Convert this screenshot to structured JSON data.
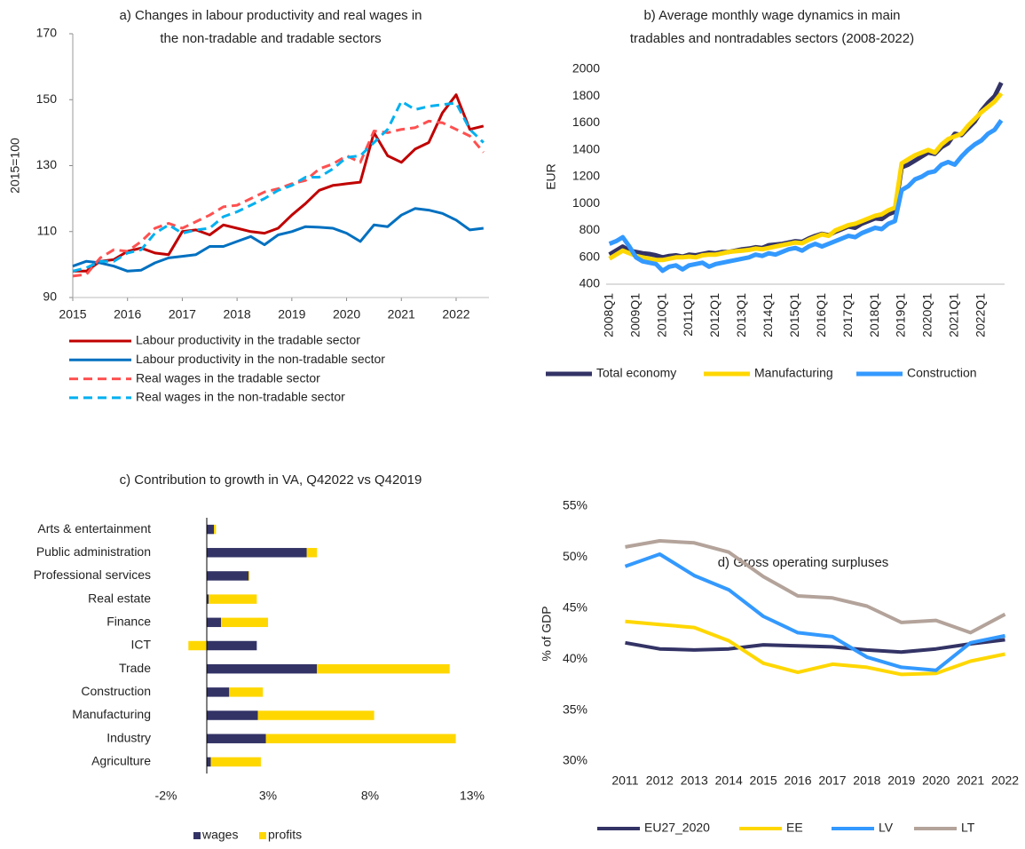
{
  "chart_data": [
    {
      "type": "line",
      "title": [
        "a) Changes in labour productivity and real wages in",
        "the non-tradable and tradable sectors"
      ],
      "y_label": "2015=100",
      "x": [
        2015,
        2015.25,
        2015.5,
        2015.75,
        2016,
        2016.25,
        2016.5,
        2016.75,
        2017,
        2017.25,
        2017.5,
        2017.75,
        2018,
        2018.25,
        2018.5,
        2018.75,
        2019,
        2019.25,
        2019.5,
        2019.75,
        2020,
        2020.25,
        2020.5,
        2020.75,
        2021,
        2021.25,
        2021.5,
        2021.75,
        2022,
        2022.25,
        2022.5
      ],
      "xlim": [
        2015,
        2022.6
      ],
      "xticks": [
        2015,
        2016,
        2017,
        2018,
        2019,
        2020,
        2021,
        2022
      ],
      "ylim": [
        90,
        170
      ],
      "yticks": [
        90,
        110,
        130,
        150,
        170
      ],
      "grid": false,
      "series": [
        {
          "name": "Labour productivity in the tradable sector",
          "color": "#c00000",
          "dashed": false,
          "values": [
            98,
            98,
            101,
            101.5,
            104,
            105,
            103.5,
            103,
            110,
            110.5,
            109,
            112,
            111,
            110,
            109.5,
            111,
            115,
            118.5,
            122.5,
            124,
            124.5,
            125,
            140,
            133,
            131,
            135,
            137,
            146,
            151.5,
            141,
            142
          ]
        },
        {
          "name": "Labour productivity in the non-tradable sector",
          "color": "#0070c0",
          "dashed": false,
          "values": [
            99.5,
            101,
            100.5,
            99.5,
            98,
            98.3,
            100.5,
            102,
            102.5,
            103,
            105.5,
            105.5,
            107,
            108.5,
            106,
            109,
            110,
            111.5,
            111.3,
            111,
            109.5,
            107,
            112,
            111.5,
            115,
            117,
            116.5,
            115.5,
            113.5,
            110.5,
            111
          ]
        },
        {
          "name": "Real wages in the tradable sector",
          "color": "#ff5050",
          "dashed": true,
          "values": [
            96.5,
            97,
            102,
            104.5,
            104,
            107,
            111,
            112.5,
            111,
            113,
            115,
            117.5,
            118,
            120,
            122,
            123,
            124.5,
            125.5,
            129,
            130.5,
            133,
            131,
            140.5,
            140,
            141,
            141.5,
            143.5,
            143,
            141,
            139,
            134
          ]
        },
        {
          "name": "Real wages in the non-tradable sector",
          "color": "#00b0f0",
          "dashed": true,
          "values": [
            98,
            99,
            101,
            101,
            103.5,
            104.5,
            109.5,
            112,
            109.5,
            110.5,
            111,
            114.5,
            116,
            118,
            120,
            122.5,
            124,
            126.5,
            126.5,
            129,
            132.5,
            133,
            137,
            141,
            149.5,
            147,
            148,
            148.5,
            149,
            141,
            137
          ]
        }
      ]
    },
    {
      "type": "line",
      "title": [
        "b) Average monthly wage dynamics in main",
        "tradables and nontradables sectors (2008-2022)"
      ],
      "y_label": "EUR",
      "categories": [
        "2008Q1",
        null,
        null,
        null,
        "2009Q1",
        null,
        null,
        null,
        "2010Q1",
        null,
        null,
        null,
        "2011Q1",
        null,
        null,
        null,
        "2012Q1",
        null,
        null,
        null,
        "2013Q1",
        null,
        null,
        null,
        "2014Q1",
        null,
        null,
        null,
        "2015Q1",
        null,
        null,
        null,
        "2016Q1",
        null,
        null,
        null,
        "2017Q1",
        null,
        null,
        null,
        "2018Q1",
        null,
        null,
        null,
        "2019Q1",
        null,
        null,
        null,
        "2020Q1",
        null,
        null,
        null,
        "2021Q1",
        null,
        null,
        null,
        "2022Q1",
        null,
        null,
        null
      ],
      "ylim": [
        400,
        2000
      ],
      "yticks": [
        400,
        600,
        800,
        1000,
        1200,
        1400,
        1600,
        1800,
        2000
      ],
      "grid": false,
      "series": [
        {
          "name": "Total economy",
          "color": "#333366",
          "values": [
            620,
            650,
            680,
            650,
            640,
            630,
            625,
            615,
            600,
            610,
            615,
            605,
            620,
            615,
            625,
            635,
            630,
            640,
            640,
            650,
            660,
            665,
            675,
            670,
            690,
            695,
            700,
            710,
            720,
            715,
            740,
            760,
            775,
            765,
            790,
            810,
            830,
            820,
            850,
            870,
            890,
            885,
            920,
            940,
            1270,
            1290,
            1320,
            1350,
            1380,
            1370,
            1420,
            1450,
            1520,
            1510,
            1560,
            1610,
            1690,
            1750,
            1800,
            1900
          ]
        },
        {
          "name": "Manufacturing",
          "color": "#ffd700",
          "values": [
            590,
            620,
            650,
            630,
            610,
            600,
            590,
            580,
            580,
            590,
            600,
            600,
            605,
            600,
            615,
            620,
            620,
            630,
            640,
            645,
            650,
            655,
            665,
            660,
            670,
            680,
            690,
            700,
            710,
            705,
            730,
            750,
            770,
            760,
            800,
            820,
            840,
            850,
            870,
            890,
            910,
            920,
            950,
            970,
            1300,
            1330,
            1360,
            1380,
            1400,
            1380,
            1440,
            1480,
            1500,
            1520,
            1580,
            1630,
            1680,
            1720,
            1760,
            1820
          ]
        },
        {
          "name": "Construction",
          "color": "#3399ff",
          "values": [
            700,
            720,
            750,
            680,
            600,
            570,
            560,
            550,
            500,
            530,
            540,
            510,
            540,
            550,
            560,
            530,
            550,
            560,
            570,
            580,
            590,
            600,
            620,
            610,
            630,
            620,
            640,
            660,
            670,
            650,
            680,
            700,
            680,
            700,
            720,
            740,
            760,
            750,
            780,
            800,
            820,
            810,
            850,
            870,
            1100,
            1130,
            1180,
            1200,
            1230,
            1240,
            1290,
            1310,
            1290,
            1350,
            1400,
            1440,
            1470,
            1520,
            1550,
            1620
          ]
        }
      ]
    },
    {
      "type": "bar",
      "orientation": "horizontal",
      "stacked": true,
      "title": "c) Contribution to growth in VA, Q42022 vs Q42019",
      "categories": [
        "Arts & entertainment",
        "Public administration",
        "Professional services",
        "Real estate",
        "Finance",
        "ICT",
        "Trade",
        "Construction",
        "Manufacturing",
        "Industry",
        "Agriculture"
      ],
      "xlim": [
        -4,
        14
      ],
      "xticks": [
        {
          "value": -2,
          "label": "-2%"
        },
        {
          "value": 3,
          "label": "3%"
        },
        {
          "value": 8,
          "label": "8%"
        },
        {
          "value": 13,
          "label": "13%"
        }
      ],
      "grid": false,
      "series": [
        {
          "name": "wages",
          "color": "#333366",
          "values": [
            0.35,
            4.9,
            2.05,
            0.1,
            0.7,
            2.45,
            5.4,
            1.1,
            2.5,
            2.9,
            0.2
          ]
        },
        {
          "name": "profits",
          "color": "#ffd700",
          "values": [
            0.1,
            0.5,
            0.05,
            2.35,
            2.3,
            -0.9,
            6.5,
            1.65,
            5.7,
            9.3,
            2.45
          ]
        }
      ]
    },
    {
      "type": "line",
      "title": "d) Gross operating surpluses",
      "y_label": "% of GDP",
      "categories": [
        "2011",
        "2012",
        "2013",
        "2014",
        "2015",
        "2016",
        "2017",
        "2018",
        "2019",
        "2020",
        "2021",
        "2022"
      ],
      "ylim": [
        30,
        55
      ],
      "yticks": [
        {
          "value": 30,
          "label": "30%"
        },
        {
          "value": 35,
          "label": "35%"
        },
        {
          "value": 40,
          "label": "40%"
        },
        {
          "value": 45,
          "label": "45%"
        },
        {
          "value": 50,
          "label": "50%"
        },
        {
          "value": 55,
          "label": "55%"
        }
      ],
      "grid": false,
      "series": [
        {
          "name": "EU27_2020",
          "color": "#333366",
          "values": [
            41.6,
            41.0,
            40.9,
            41.0,
            41.4,
            41.3,
            41.2,
            40.9,
            40.7,
            41.0,
            41.5,
            41.9
          ]
        },
        {
          "name": "EE",
          "color": "#ffd700",
          "values": [
            43.7,
            43.4,
            43.1,
            41.8,
            39.6,
            38.7,
            39.5,
            39.2,
            38.5,
            38.6,
            39.8,
            40.5
          ]
        },
        {
          "name": "LV",
          "color": "#3399ff",
          "values": [
            49.1,
            50.3,
            48.2,
            46.8,
            44.2,
            42.6,
            42.2,
            40.2,
            39.2,
            38.9,
            41.6,
            42.3
          ]
        },
        {
          "name": "LT",
          "color": "#b3a39a",
          "values": [
            51.0,
            51.6,
            51.4,
            50.5,
            48.1,
            46.2,
            46.0,
            45.2,
            43.6,
            43.8,
            42.6,
            44.4
          ]
        }
      ]
    }
  ]
}
